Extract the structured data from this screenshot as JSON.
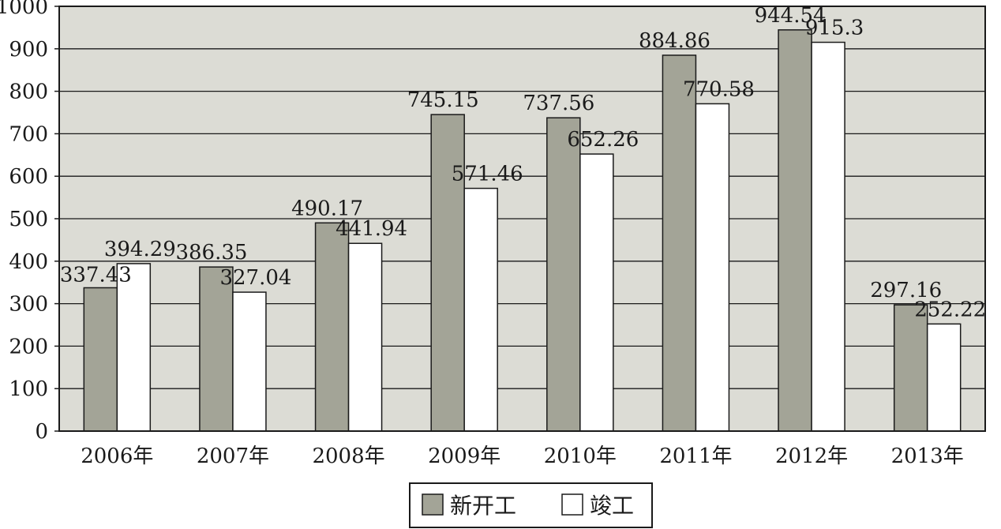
{
  "chart_data": {
    "type": "bar",
    "categories": [
      "2006年",
      "2007年",
      "2008年",
      "2009年",
      "2010年",
      "2011年",
      "2012年",
      "2013年"
    ],
    "series": [
      {
        "name": "新开工",
        "values": [
          337.43,
          386.35,
          490.17,
          745.15,
          737.56,
          884.86,
          944.54,
          297.16
        ],
        "color": "#a3a497"
      },
      {
        "name": "竣工",
        "values": [
          394.29,
          327.04,
          441.94,
          571.46,
          652.26,
          770.58,
          915.3,
          252.22
        ],
        "color": "#ffffff"
      }
    ],
    "value_labels": [
      [
        "337.43",
        "386.35",
        "490.17",
        "745.15",
        "737.56",
        "884.86",
        "944.54",
        "297.16"
      ],
      [
        "394.29",
        "327.04",
        "441.94",
        "571.46",
        "652.26",
        "770.58",
        "915.3",
        "252.22"
      ]
    ],
    "y_ticks": [
      "0",
      "100",
      "200",
      "300",
      "400",
      "500",
      "600",
      "700",
      "800",
      "900",
      "1000"
    ],
    "ylim": [
      0,
      1000
    ],
    "grid": true,
    "plot_background": "#dcdcd5",
    "legend_position": "bottom-center",
    "title": "",
    "xlabel": "",
    "ylabel": ""
  }
}
